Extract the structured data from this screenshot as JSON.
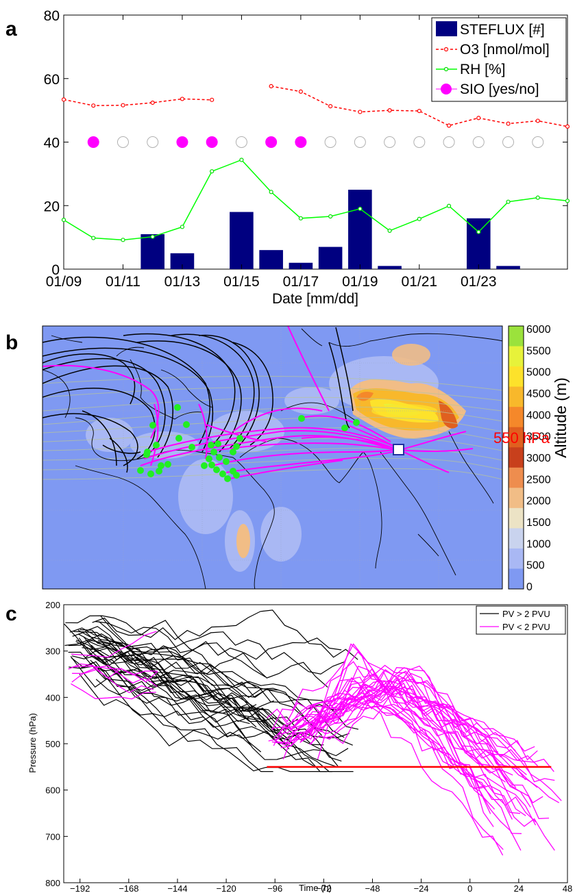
{
  "panels": {
    "a": {
      "label": "a"
    },
    "b": {
      "label": "b"
    },
    "c": {
      "label": "c"
    }
  },
  "chart_data": [
    {
      "panel": "a",
      "type": "bar+line",
      "xlabel": "Date [mm/dd]",
      "ylabel": "",
      "ylim": [
        0,
        80
      ],
      "yticks": [
        0,
        20,
        40,
        60,
        80
      ],
      "xlim": [
        0,
        17
      ],
      "xtick_positions": [
        0,
        2,
        4,
        6,
        8,
        10,
        12,
        14
      ],
      "xtick_labels": [
        "01/09",
        "01/11",
        "01/13",
        "01/15",
        "01/17",
        "01/19",
        "01/21",
        "01/23"
      ],
      "legend": {
        "position": "top-right",
        "entries": [
          "STEFLUX [#]",
          "O3 [nmol/mol]",
          "RH [%]",
          "SIO [yes/no]"
        ]
      },
      "colors": {
        "steflux": "#000080",
        "o3": "#ff0000",
        "rh": "#00ff00",
        "sio": "#ff00ff",
        "sio_no": "#b0b0b0"
      },
      "steflux": {
        "name": "STEFLUX [#]",
        "x": [
          3,
          4,
          6,
          7,
          8,
          9,
          10,
          11,
          14,
          15
        ],
        "values": [
          11,
          5,
          18,
          6,
          2,
          7,
          25,
          1,
          16,
          1
        ]
      },
      "o3": {
        "name": "O3 [nmol/mol]",
        "segments": [
          {
            "x": [
              0,
              1,
              2,
              3,
              4,
              5
            ],
            "y": [
              53.4,
              51.5,
              51.6,
              52.4,
              53.6,
              53.3
            ]
          },
          {
            "x": [
              7,
              8,
              9,
              10,
              11,
              12,
              13,
              14,
              15,
              16,
              17
            ],
            "y": [
              57.6,
              55.9,
              51.3,
              49.5,
              50.0,
              49.8,
              45.2,
              47.6,
              45.8,
              46.7,
              44.9
            ]
          }
        ]
      },
      "rh": {
        "name": "RH [%]",
        "x": [
          0,
          1,
          2,
          3,
          4,
          5,
          6,
          7,
          8,
          9,
          10,
          11,
          12,
          13,
          14,
          15,
          16,
          17
        ],
        "y": [
          15.5,
          9.8,
          9.2,
          10.2,
          13.3,
          30.8,
          34.4,
          24.3,
          16.0,
          16.6,
          19.0,
          12.1,
          15.8,
          19.9,
          11.7,
          21.2,
          22.5,
          21.5
        ]
      },
      "sio": {
        "name": "SIO [yes/no]",
        "y_level": 40,
        "x": [
          1,
          2,
          3,
          4,
          5,
          6,
          7,
          8,
          9,
          10,
          11,
          12,
          13,
          14,
          15,
          16
        ],
        "yes": [
          1,
          0,
          0,
          1,
          1,
          0,
          1,
          1,
          0,
          0,
          0,
          0,
          0,
          0,
          0,
          0
        ]
      }
    },
    {
      "panel": "b",
      "type": "map",
      "colorbar": {
        "label": "Altitude (m)",
        "ticks": [
          6000,
          5500,
          5000,
          4500,
          4000,
          3500,
          3000,
          2500,
          2000,
          1500,
          1000,
          500,
          0
        ],
        "colors": [
          "#9be23c",
          "#e7f23a",
          "#fde22b",
          "#f8b82b",
          "#f5882a",
          "#e0601f",
          "#c8401c",
          "#ee8d4e",
          "#f1bd86",
          "#ece3c5",
          "#c9d3ee",
          "#a9b8f4",
          "#7f99f2"
        ]
      },
      "trajectory_colors": {
        "stratospheric": "#000000",
        "tropospheric": "#ff00ff",
        "points": "#22ee22",
        "receptor": "#ffffff"
      }
    },
    {
      "panel": "c",
      "type": "line",
      "xlabel": "Time (h)",
      "ylabel": "Pressure (hPa)",
      "xlim": [
        -200,
        48
      ],
      "ylim": [
        800,
        200
      ],
      "xticks": [
        -192,
        -168,
        -144,
        -120,
        -96,
        -72,
        -48,
        -24,
        0,
        24,
        48
      ],
      "xtick_labels": [
        "−192",
        "−168",
        "−144",
        "−120",
        "−96",
        "−72",
        "−48",
        "−24",
        "0",
        "24",
        "48"
      ],
      "yticks": [
        200,
        300,
        400,
        500,
        600,
        700,
        800
      ],
      "legend": {
        "position": "top-right",
        "entries": [
          "PV > 2 PVU",
          "PV < 2 PVU"
        ]
      },
      "series": [
        {
          "name": "PV > 2 PVU",
          "color": "#000000"
        },
        {
          "name": "PV < 2 PVU",
          "color": "#ff00ff"
        }
      ],
      "reference_line": {
        "label": "550 hPa",
        "y": 550,
        "x": [
          -100,
          40
        ],
        "color": "#ff0000"
      }
    }
  ]
}
